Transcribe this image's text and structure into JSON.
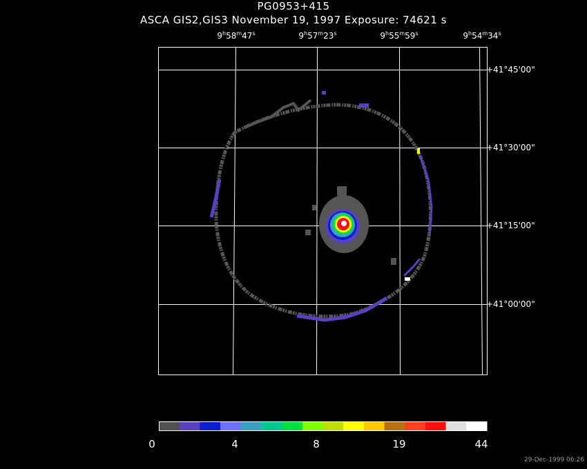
{
  "title": {
    "line1": "PG0953+415",
    "line2": "ASCA GIS2,GIS3 November 19, 1997 Exposure: 74621 s"
  },
  "ra_labels": [
    {
      "h": "9",
      "m": "58",
      "s": "47"
    },
    {
      "h": "9",
      "m": "57",
      "s": "23"
    },
    {
      "h": "9",
      "m": "55",
      "s": "59"
    },
    {
      "h": "9",
      "m": "54",
      "s": "34"
    }
  ],
  "dec_labels": [
    {
      "d": "+41",
      "m": "45",
      "s": "00"
    },
    {
      "d": "+41",
      "m": "30",
      "s": "00"
    },
    {
      "d": "+41",
      "m": "15",
      "s": "00"
    },
    {
      "d": "+41",
      "m": "00",
      "s": "00"
    }
  ],
  "colorbar": {
    "colors": [
      "#505050",
      "#5a3fc0",
      "#0a1fd0",
      "#7070ff",
      "#3aa0c0",
      "#00c890",
      "#00e040",
      "#80ff00",
      "#c0e000",
      "#ffff00",
      "#ffc800",
      "#b87010",
      "#ff4020",
      "#ff1010",
      "#e0e0e0",
      "#ffffff"
    ],
    "labels": [
      "0",
      "4",
      "8",
      "19",
      "44"
    ]
  },
  "timestamp": "29-Dec-1999 06:26"
}
